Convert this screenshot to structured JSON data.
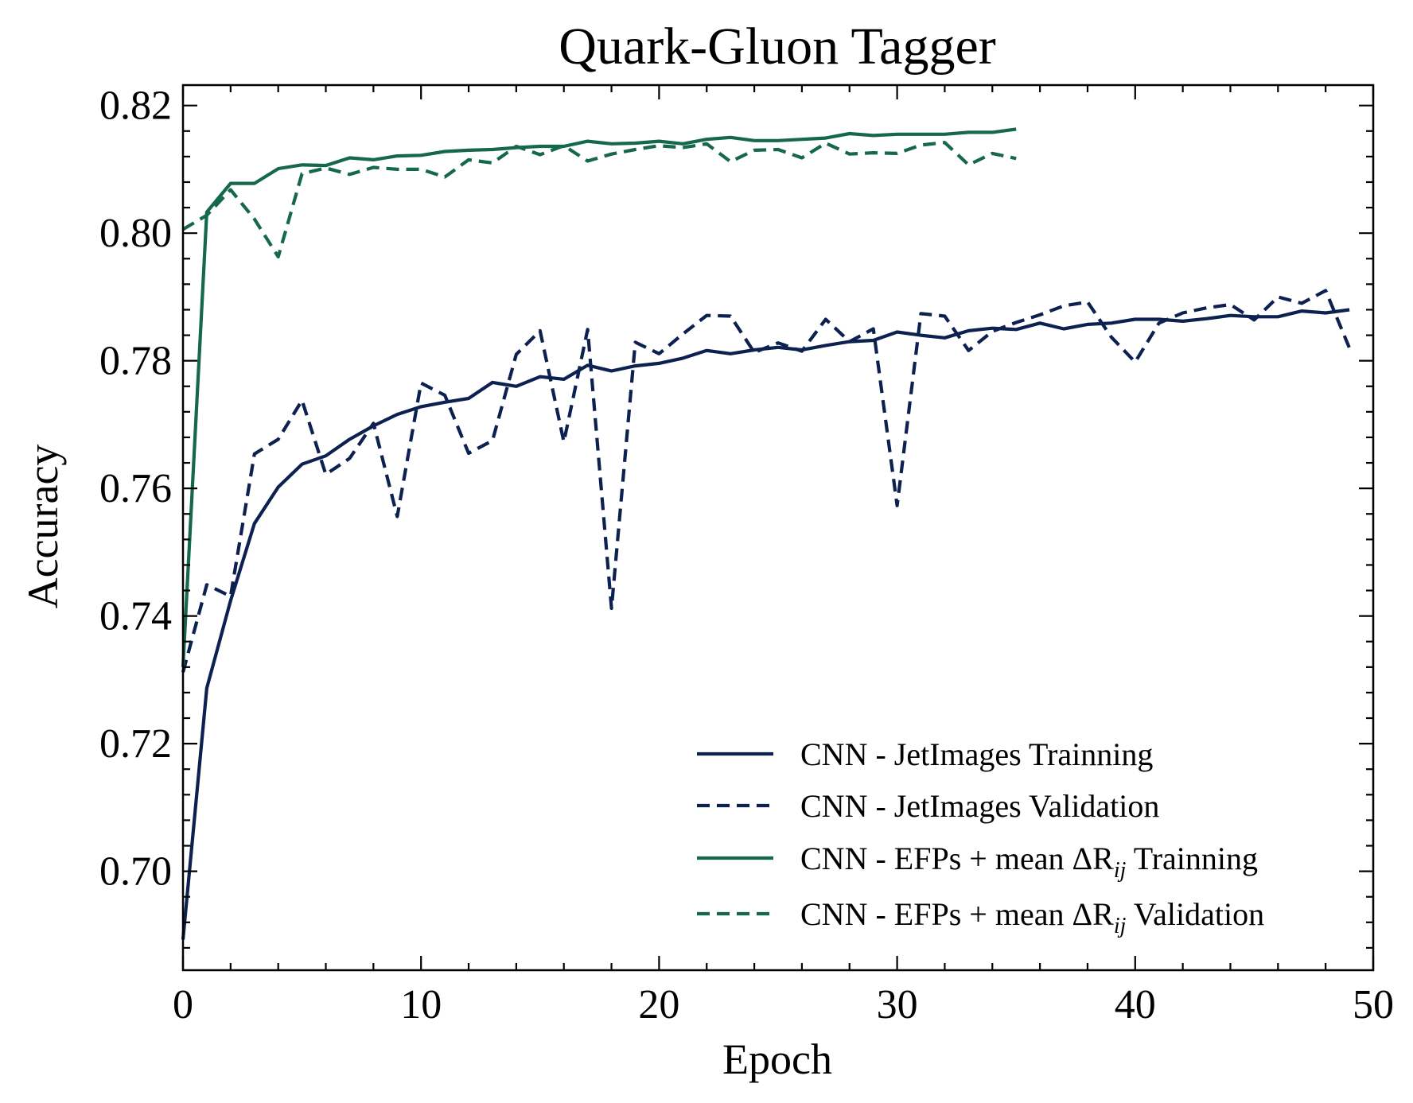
{
  "chart_data": {
    "type": "line",
    "title": "Quark-Gluon Tagger",
    "xlabel": "Epoch",
    "ylabel": "Accuracy",
    "xlim": [
      0,
      50
    ],
    "ylim": [
      0.6845,
      0.8232
    ],
    "x_ticks": [
      0,
      10,
      20,
      30,
      40,
      50
    ],
    "x_tick_labels": [
      "0",
      "10",
      "20",
      "30",
      "40",
      "50"
    ],
    "y_ticks": [
      0.7,
      0.72,
      0.74,
      0.76,
      0.78,
      0.8,
      0.82
    ],
    "y_tick_labels": [
      "0.70",
      "0.72",
      "0.74",
      "0.76",
      "0.78",
      "0.80",
      "0.82"
    ],
    "grid": false,
    "legend_position": "bottom-right",
    "series": [
      {
        "name": "CNN - JetImages Trainning",
        "color": "#0d2151",
        "dash": "solid",
        "values": [
          0.6893,
          0.7287,
          0.7424,
          0.7545,
          0.7602,
          0.7638,
          0.7651,
          0.7677,
          0.7698,
          0.7716,
          0.7728,
          0.7735,
          0.7741,
          0.7766,
          0.776,
          0.7775,
          0.7771,
          0.7793,
          0.7784,
          0.7792,
          0.7796,
          0.7804,
          0.7816,
          0.7811,
          0.7817,
          0.7821,
          0.7817,
          0.7824,
          0.783,
          0.7832,
          0.7845,
          0.784,
          0.7836,
          0.7847,
          0.7851,
          0.7849,
          0.7859,
          0.785,
          0.7857,
          0.7859,
          0.7865,
          0.7865,
          0.7862,
          0.7866,
          0.7871,
          0.7869,
          0.7869,
          0.7878,
          0.7875,
          0.788
        ]
      },
      {
        "name": "CNN - JetImages Validation",
        "color": "#0d2151",
        "dash": "dashed",
        "values": [
          0.7312,
          0.7449,
          0.7431,
          0.7654,
          0.7677,
          0.7738,
          0.7622,
          0.7647,
          0.7702,
          0.7556,
          0.7765,
          0.7746,
          0.7655,
          0.7675,
          0.781,
          0.7847,
          0.7673,
          0.7849,
          0.7412,
          0.7829,
          0.7811,
          0.7842,
          0.7871,
          0.787,
          0.7813,
          0.7828,
          0.7815,
          0.7865,
          0.783,
          0.785,
          0.7573,
          0.7874,
          0.787,
          0.7816,
          0.7846,
          0.786,
          0.7872,
          0.7886,
          0.7892,
          0.7837,
          0.7798,
          0.7859,
          0.7875,
          0.7883,
          0.7888,
          0.7864,
          0.79,
          0.789,
          0.791,
          0.782
        ]
      },
      {
        "name": "CNN - EFPs + mean ΔR_ij Trainning",
        "color": "#15694a",
        "dash": "solid",
        "values": [
          0.732,
          0.8033,
          0.8078,
          0.8078,
          0.8101,
          0.8107,
          0.8106,
          0.8118,
          0.8115,
          0.8121,
          0.8122,
          0.8128,
          0.813,
          0.8131,
          0.8134,
          0.8136,
          0.8136,
          0.8144,
          0.814,
          0.8141,
          0.8144,
          0.814,
          0.8147,
          0.815,
          0.8145,
          0.8145,
          0.8147,
          0.8149,
          0.8156,
          0.8153,
          0.8155,
          0.8155,
          0.8155,
          0.8158,
          0.8158,
          0.8163
        ]
      },
      {
        "name": "CNN - EFPs + mean ΔR_ij Validation",
        "color": "#15694a",
        "dash": "dashed",
        "values": [
          0.8006,
          0.8028,
          0.8068,
          0.8022,
          0.7963,
          0.8093,
          0.8102,
          0.8092,
          0.8103,
          0.81,
          0.81,
          0.8088,
          0.8115,
          0.811,
          0.8136,
          0.8123,
          0.8137,
          0.8113,
          0.8124,
          0.8131,
          0.8137,
          0.8134,
          0.814,
          0.8112,
          0.813,
          0.8131,
          0.8118,
          0.8141,
          0.8124,
          0.8126,
          0.8125,
          0.8138,
          0.8142,
          0.8107,
          0.8125,
          0.8117
        ]
      }
    ],
    "legend": [
      {
        "main": "CNN - JetImages Trainning",
        "series": 0
      },
      {
        "main": "CNN - JetImages Validation",
        "series": 1
      },
      {
        "pre": "CNN - EFPs + mean ΔR",
        "sub": "ij",
        "post": " Trainning",
        "series": 2
      },
      {
        "pre": "CNN - EFPs + mean ΔR",
        "sub": "ij",
        "post": " Validation",
        "series": 3
      }
    ]
  }
}
